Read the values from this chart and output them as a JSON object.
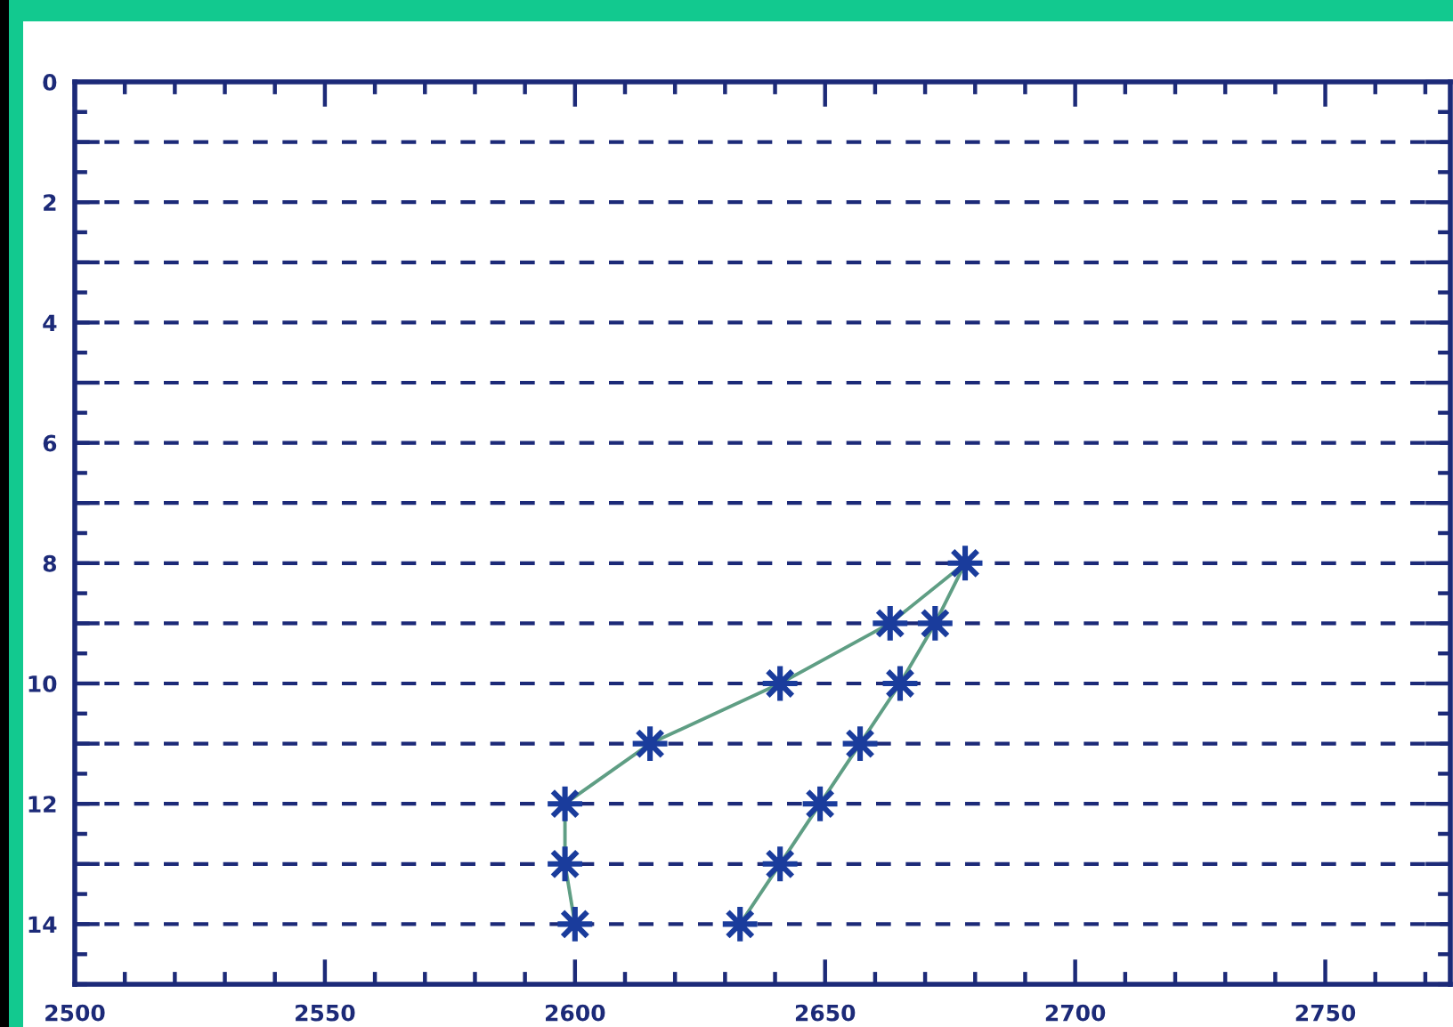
{
  "chart_data": {
    "type": "line",
    "x": [
      2633,
      2641,
      2649,
      2657,
      2665,
      2672,
      2678,
      2663,
      2641,
      2615,
      2598,
      2598,
      2600
    ],
    "series": [
      {
        "color": "#5f9e84",
        "marker": "none",
        "line_style": "solid",
        "values": [
          14,
          13,
          12,
          11,
          10,
          9,
          8,
          9,
          10,
          11,
          12,
          13,
          14
        ]
      },
      {
        "type": "scatter",
        "color": "#1a3c9c",
        "marker": "cross",
        "values": [
          14,
          13,
          12,
          11,
          10,
          9,
          8,
          9,
          10,
          11,
          12,
          13,
          14
        ]
      }
    ],
    "xlim": [
      2500,
      2775
    ],
    "xticks": [
      2500,
      2550,
      2600,
      2650,
      2700,
      2750
    ],
    "ylim": [
      15,
      0
    ],
    "yticks": [
      0,
      {
        "value": 1,
        "label": null
      },
      2,
      {
        "value": 3,
        "label": null
      },
      4,
      {
        "value": 5,
        "label": null
      },
      6,
      {
        "value": 7,
        "label": null
      },
      8,
      {
        "value": 9,
        "label": null
      },
      10,
      {
        "value": 11,
        "label": null
      },
      12,
      {
        "value": 13,
        "label": null
      },
      14
    ],
    "grid": "y"
  }
}
